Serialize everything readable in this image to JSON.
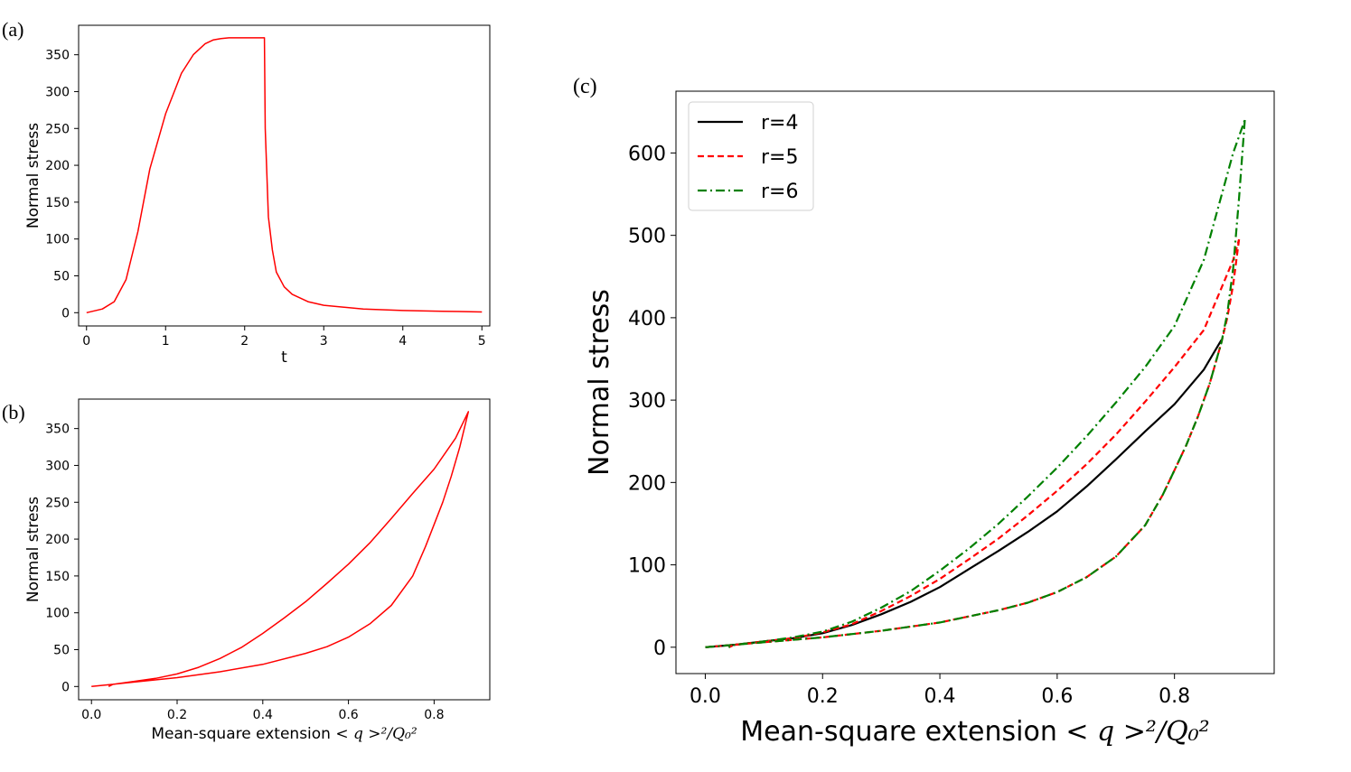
{
  "chart_data": [
    {
      "panel": "(a)",
      "type": "line",
      "xlabel": "t",
      "ylabel": "Normal stress",
      "xlim": [
        -0.1,
        5.1
      ],
      "ylim": [
        -18,
        390
      ],
      "xticks": [
        0,
        1,
        2,
        3,
        4,
        5
      ],
      "yticks": [
        0,
        50,
        100,
        150,
        200,
        250,
        300,
        350
      ],
      "grid": false,
      "series": [
        {
          "color": "#ff0000",
          "style": "solid",
          "x": [
            0,
            0.2,
            0.35,
            0.5,
            0.65,
            0.8,
            1.0,
            1.2,
            1.35,
            1.5,
            1.6,
            1.7,
            1.8,
            2.0,
            2.2,
            2.25,
            2.26,
            2.3,
            2.35,
            2.4,
            2.5,
            2.6,
            2.8,
            3.0,
            3.5,
            4.0,
            4.5,
            5.0
          ],
          "y": [
            0,
            5,
            15,
            45,
            110,
            195,
            270,
            325,
            350,
            365,
            370,
            372,
            373,
            373,
            373,
            373,
            250,
            130,
            85,
            55,
            35,
            25,
            15,
            10,
            5,
            3,
            2,
            1
          ]
        }
      ]
    },
    {
      "panel": "(b)",
      "type": "line",
      "xlabel": "Mean-square extension",
      "xlabel_math": "< q >²/Q₀²",
      "ylabel": "Normal stress",
      "xlim": [
        -0.03,
        0.93
      ],
      "ylim": [
        -18,
        390
      ],
      "xticks": [
        "0.0",
        "0.2",
        "0.4",
        "0.6",
        "0.8"
      ],
      "yticks": [
        0,
        50,
        100,
        150,
        200,
        250,
        300,
        350
      ],
      "grid": false,
      "series": [
        {
          "color": "#ff0000",
          "style": "solid",
          "x": [
            0,
            0.05,
            0.1,
            0.15,
            0.2,
            0.25,
            0.3,
            0.35,
            0.4,
            0.45,
            0.5,
            0.55,
            0.6,
            0.65,
            0.7,
            0.75,
            0.8,
            0.85,
            0.88,
            0.88,
            0.86,
            0.84,
            0.82,
            0.8,
            0.78,
            0.75,
            0.7,
            0.65,
            0.6,
            0.55,
            0.5,
            0.4,
            0.3,
            0.2,
            0.1,
            0.05,
            0.04
          ],
          "y": [
            0,
            3,
            7,
            11,
            17,
            26,
            38,
            53,
            72,
            93,
            115,
            140,
            166,
            195,
            228,
            262,
            295,
            337,
            373,
            373,
            325,
            285,
            250,
            220,
            190,
            150,
            110,
            85,
            67,
            54,
            45,
            30,
            20,
            12,
            6,
            3,
            0
          ]
        }
      ]
    },
    {
      "panel": "(c)",
      "type": "line",
      "xlabel": "Mean-square extension",
      "xlabel_math": "< q >²/Q₀²",
      "ylabel": "Normal stress",
      "xlim": [
        -0.05,
        0.97
      ],
      "ylim": [
        -32,
        675
      ],
      "xticks": [
        "0.0",
        "0.2",
        "0.4",
        "0.6",
        "0.8"
      ],
      "yticks": [
        0,
        100,
        200,
        300,
        400,
        500,
        600
      ],
      "grid": false,
      "legend": "upper-left",
      "series": [
        {
          "name": "r=4",
          "color": "#000000",
          "style": "solid",
          "x": [
            0,
            0.05,
            0.1,
            0.15,
            0.2,
            0.25,
            0.3,
            0.35,
            0.4,
            0.45,
            0.5,
            0.55,
            0.6,
            0.65,
            0.7,
            0.75,
            0.8,
            0.85,
            0.88
          ],
          "y": [
            0,
            3,
            7,
            11,
            17,
            27,
            40,
            55,
            73,
            95,
            117,
            140,
            165,
            195,
            228,
            262,
            295,
            337,
            373
          ]
        },
        {
          "name": "r=5",
          "color": "#ff0000",
          "style": "dashed",
          "x": [
            0,
            0.05,
            0.1,
            0.15,
            0.2,
            0.25,
            0.3,
            0.35,
            0.4,
            0.45,
            0.5,
            0.55,
            0.6,
            0.65,
            0.7,
            0.75,
            0.8,
            0.85,
            0.9,
            0.91
          ],
          "y": [
            0,
            3,
            7,
            11,
            18,
            28,
            44,
            62,
            83,
            107,
            132,
            160,
            190,
            222,
            258,
            298,
            340,
            385,
            470,
            495
          ]
        },
        {
          "name": "r=6",
          "color": "#008000",
          "style": "dashdot",
          "x": [
            0,
            0.05,
            0.1,
            0.15,
            0.2,
            0.25,
            0.3,
            0.35,
            0.4,
            0.45,
            0.5,
            0.55,
            0.6,
            0.65,
            0.7,
            0.75,
            0.8,
            0.85,
            0.9,
            0.92
          ],
          "y": [
            0,
            3,
            7,
            12,
            19,
            31,
            48,
            68,
            93,
            120,
            150,
            183,
            218,
            256,
            297,
            340,
            390,
            470,
            600,
            640
          ]
        },
        {
          "color": "#ff0000",
          "style": "dashed",
          "x": [
            0.91,
            0.9,
            0.89,
            0.88,
            0.86,
            0.84,
            0.82,
            0.8,
            0.78,
            0.75,
            0.7,
            0.65,
            0.6,
            0.55,
            0.5,
            0.4,
            0.3,
            0.2,
            0.1,
            0.05,
            0.04
          ],
          "y": [
            495,
            440,
            400,
            370,
            320,
            280,
            245,
            215,
            185,
            148,
            110,
            85,
            67,
            54,
            45,
            30,
            20,
            12,
            6,
            3,
            0
          ]
        },
        {
          "color": "#008000",
          "style": "dashdot",
          "x": [
            0.92,
            0.91,
            0.9,
            0.89,
            0.88,
            0.86,
            0.84,
            0.82,
            0.8,
            0.78,
            0.75,
            0.7,
            0.65,
            0.6,
            0.55,
            0.5,
            0.4,
            0.3,
            0.2,
            0.1,
            0.05,
            0.04
          ],
          "y": [
            640,
            545,
            460,
            405,
            370,
            320,
            280,
            245,
            215,
            185,
            148,
            110,
            85,
            67,
            54,
            45,
            30,
            20,
            12,
            6,
            3,
            0
          ]
        }
      ]
    }
  ]
}
